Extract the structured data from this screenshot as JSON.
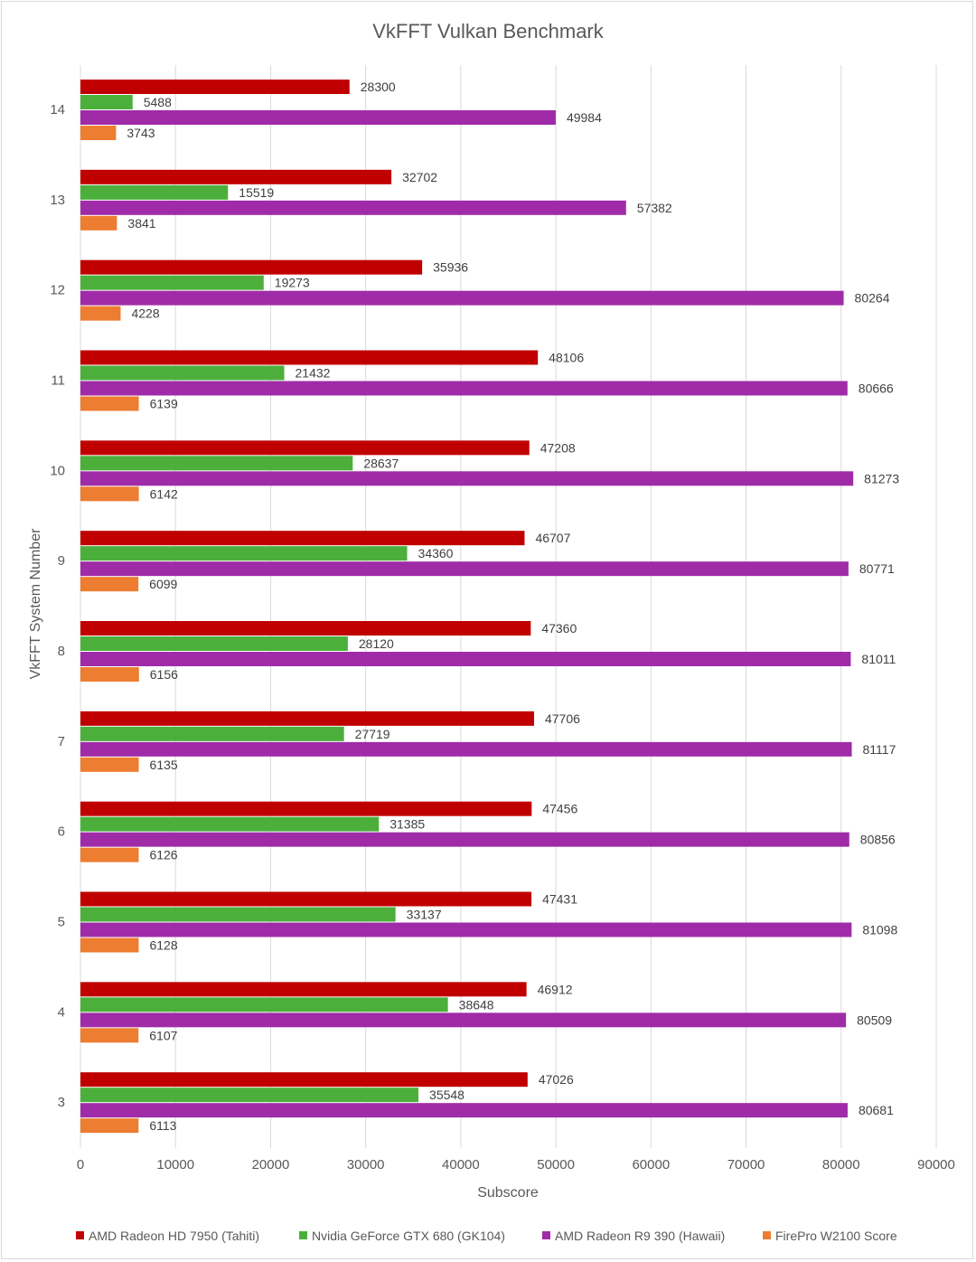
{
  "chart_data": {
    "type": "bar",
    "orientation": "horizontal",
    "title": "VkFFT Vulkan Benchmark",
    "xlabel": "Subscore",
    "ylabel": "VkFFT System Number",
    "xlim": [
      0,
      90000
    ],
    "x_ticks": [
      "0",
      "10000",
      "20000",
      "30000",
      "40000",
      "50000",
      "60000",
      "70000",
      "80000",
      "90000"
    ],
    "grid": "vertical",
    "legend_position": "bottom",
    "categories": [
      "14",
      "13",
      "12",
      "11",
      "10",
      "9",
      "8",
      "7",
      "6",
      "5",
      "4",
      "3"
    ],
    "series": [
      {
        "name": "AMD Radeon HD 7950 (Tahiti)",
        "color": "#c00000",
        "values": [
          28300,
          32702,
          35936,
          48106,
          47208,
          46707,
          47360,
          47706,
          47456,
          47431,
          46912,
          47026
        ]
      },
      {
        "name": "Nvidia GeForce GTX 680 (GK104)",
        "color": "#4caf3c",
        "values": [
          5488,
          15519,
          19273,
          21432,
          28637,
          34360,
          28120,
          27719,
          31385,
          33137,
          38648,
          35548
        ]
      },
      {
        "name": "AMD Radeon R9 390 (Hawaii)",
        "color": "#a02ba8",
        "values": [
          49984,
          57382,
          80264,
          80666,
          81273,
          80771,
          81011,
          81117,
          80856,
          81098,
          80509,
          80681
        ]
      },
      {
        "name": "FirePro W2100 Score",
        "color": "#ed7d31",
        "values": [
          3743,
          3841,
          4228,
          6139,
          6142,
          6099,
          6156,
          6135,
          6126,
          6128,
          6107,
          6113
        ]
      }
    ]
  }
}
